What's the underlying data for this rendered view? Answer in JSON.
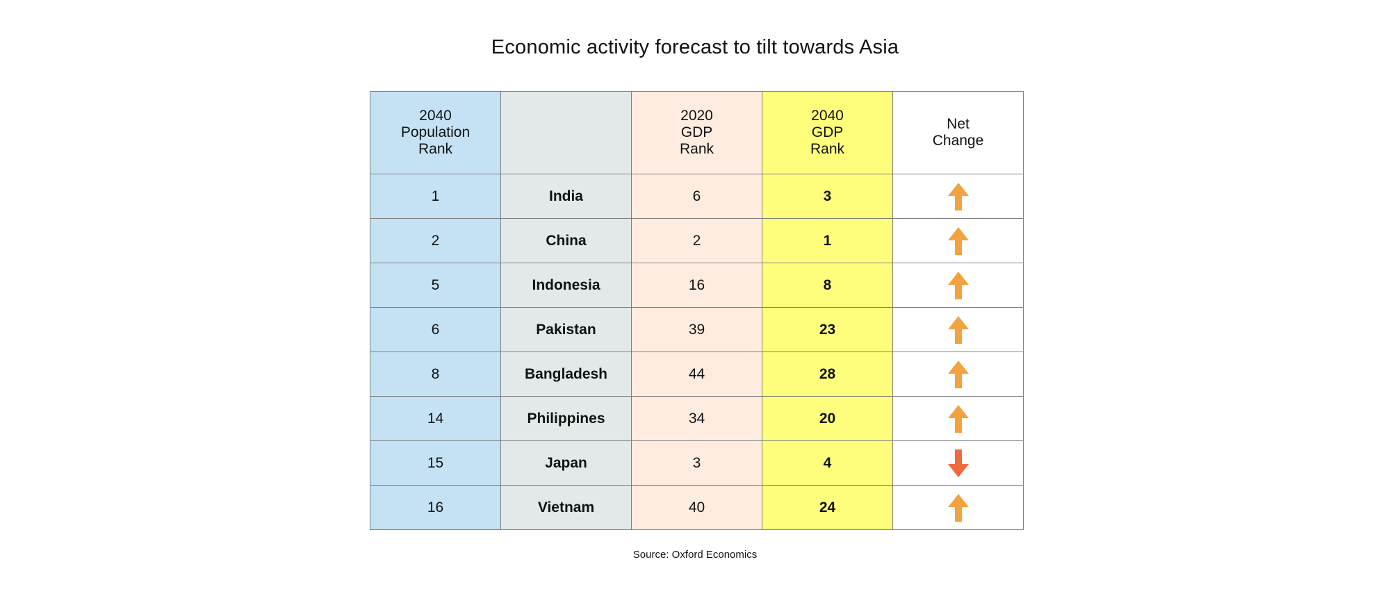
{
  "chart_data": {
    "type": "table",
    "title": "Economic activity forecast to tilt towards Asia",
    "source": "Source: Oxford Economics",
    "headers": {
      "population_rank": [
        "2040",
        "Population",
        "Rank"
      ],
      "country": "",
      "gdp_2020": [
        "2020",
        "GDP",
        "Rank"
      ],
      "gdp_2040": [
        "2040",
        "GDP",
        "Rank"
      ],
      "net_change": [
        "Net",
        "Change"
      ]
    },
    "rows": [
      {
        "pop_rank": "1",
        "country": "India",
        "gdp_2020": "6",
        "gdp_2040": "3",
        "net_change": "up"
      },
      {
        "pop_rank": "2",
        "country": "China",
        "gdp_2020": "2",
        "gdp_2040": "1",
        "net_change": "up"
      },
      {
        "pop_rank": "5",
        "country": "Indonesia",
        "gdp_2020": "16",
        "gdp_2040": "8",
        "net_change": "up"
      },
      {
        "pop_rank": "6",
        "country": "Pakistan",
        "gdp_2020": "39",
        "gdp_2040": "23",
        "net_change": "up"
      },
      {
        "pop_rank": "8",
        "country": "Bangladesh",
        "gdp_2020": "44",
        "gdp_2040": "28",
        "net_change": "up"
      },
      {
        "pop_rank": "14",
        "country": "Philippines",
        "gdp_2020": "34",
        "gdp_2040": "20",
        "net_change": "up"
      },
      {
        "pop_rank": "15",
        "country": "Japan",
        "gdp_2020": "3",
        "gdp_2040": "4",
        "net_change": "down"
      },
      {
        "pop_rank": "16",
        "country": "Vietnam",
        "gdp_2020": "40",
        "gdp_2040": "24",
        "net_change": "up"
      }
    ],
    "colors": {
      "population_col": "#c4e2f4",
      "country_col": "#e3e9e9",
      "gdp_2020_col": "#fdecdf",
      "gdp_2040_col": "#fefe7c",
      "arrow_up": "#f2a340",
      "arrow_down": "#ee6b3f",
      "border": "#7f7f7f"
    },
    "icons": {
      "up": "arrow-up-icon",
      "down": "arrow-down-icon"
    }
  }
}
